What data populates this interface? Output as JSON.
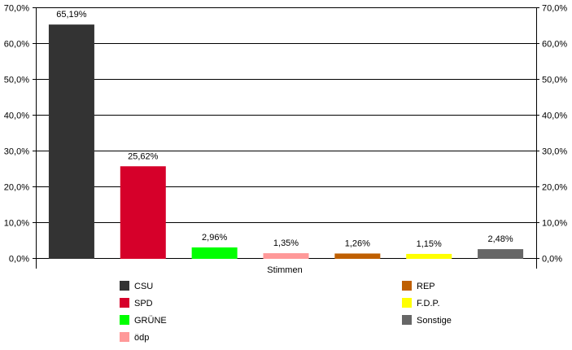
{
  "chart_data": {
    "type": "bar",
    "title": "",
    "xlabel": "Stimmen",
    "ylabel": "",
    "ylim": [
      0,
      70
    ],
    "yticks": [
      0,
      10,
      20,
      30,
      40,
      50,
      60,
      70
    ],
    "ytick_labels": [
      "0,0%",
      "10,0%",
      "20,0%",
      "30,0%",
      "40,0%",
      "50,0%",
      "60,0%",
      "70,0%"
    ],
    "grid": true,
    "legend_placement": "bottom",
    "categories": [
      "CSU",
      "SPD",
      "GRÜNE",
      "ödp",
      "REP",
      "F.D.P.",
      "Sonstige"
    ],
    "values": [
      65.19,
      25.62,
      2.96,
      1.35,
      1.26,
      1.15,
      2.48
    ],
    "data_labels": [
      "65,19%",
      "25,62%",
      "2,96%",
      "1,35%",
      "1,26%",
      "1,15%",
      "2,48%"
    ],
    "colors": [
      "#333333",
      "#d6002a",
      "#00ff00",
      "#ff9999",
      "#bf5f00",
      "#ffff00",
      "#666666"
    ],
    "legend": [
      "CSU",
      "SPD",
      "GRÜNE",
      "ödp",
      "REP",
      "F.D.P.",
      "Sonstige"
    ]
  }
}
